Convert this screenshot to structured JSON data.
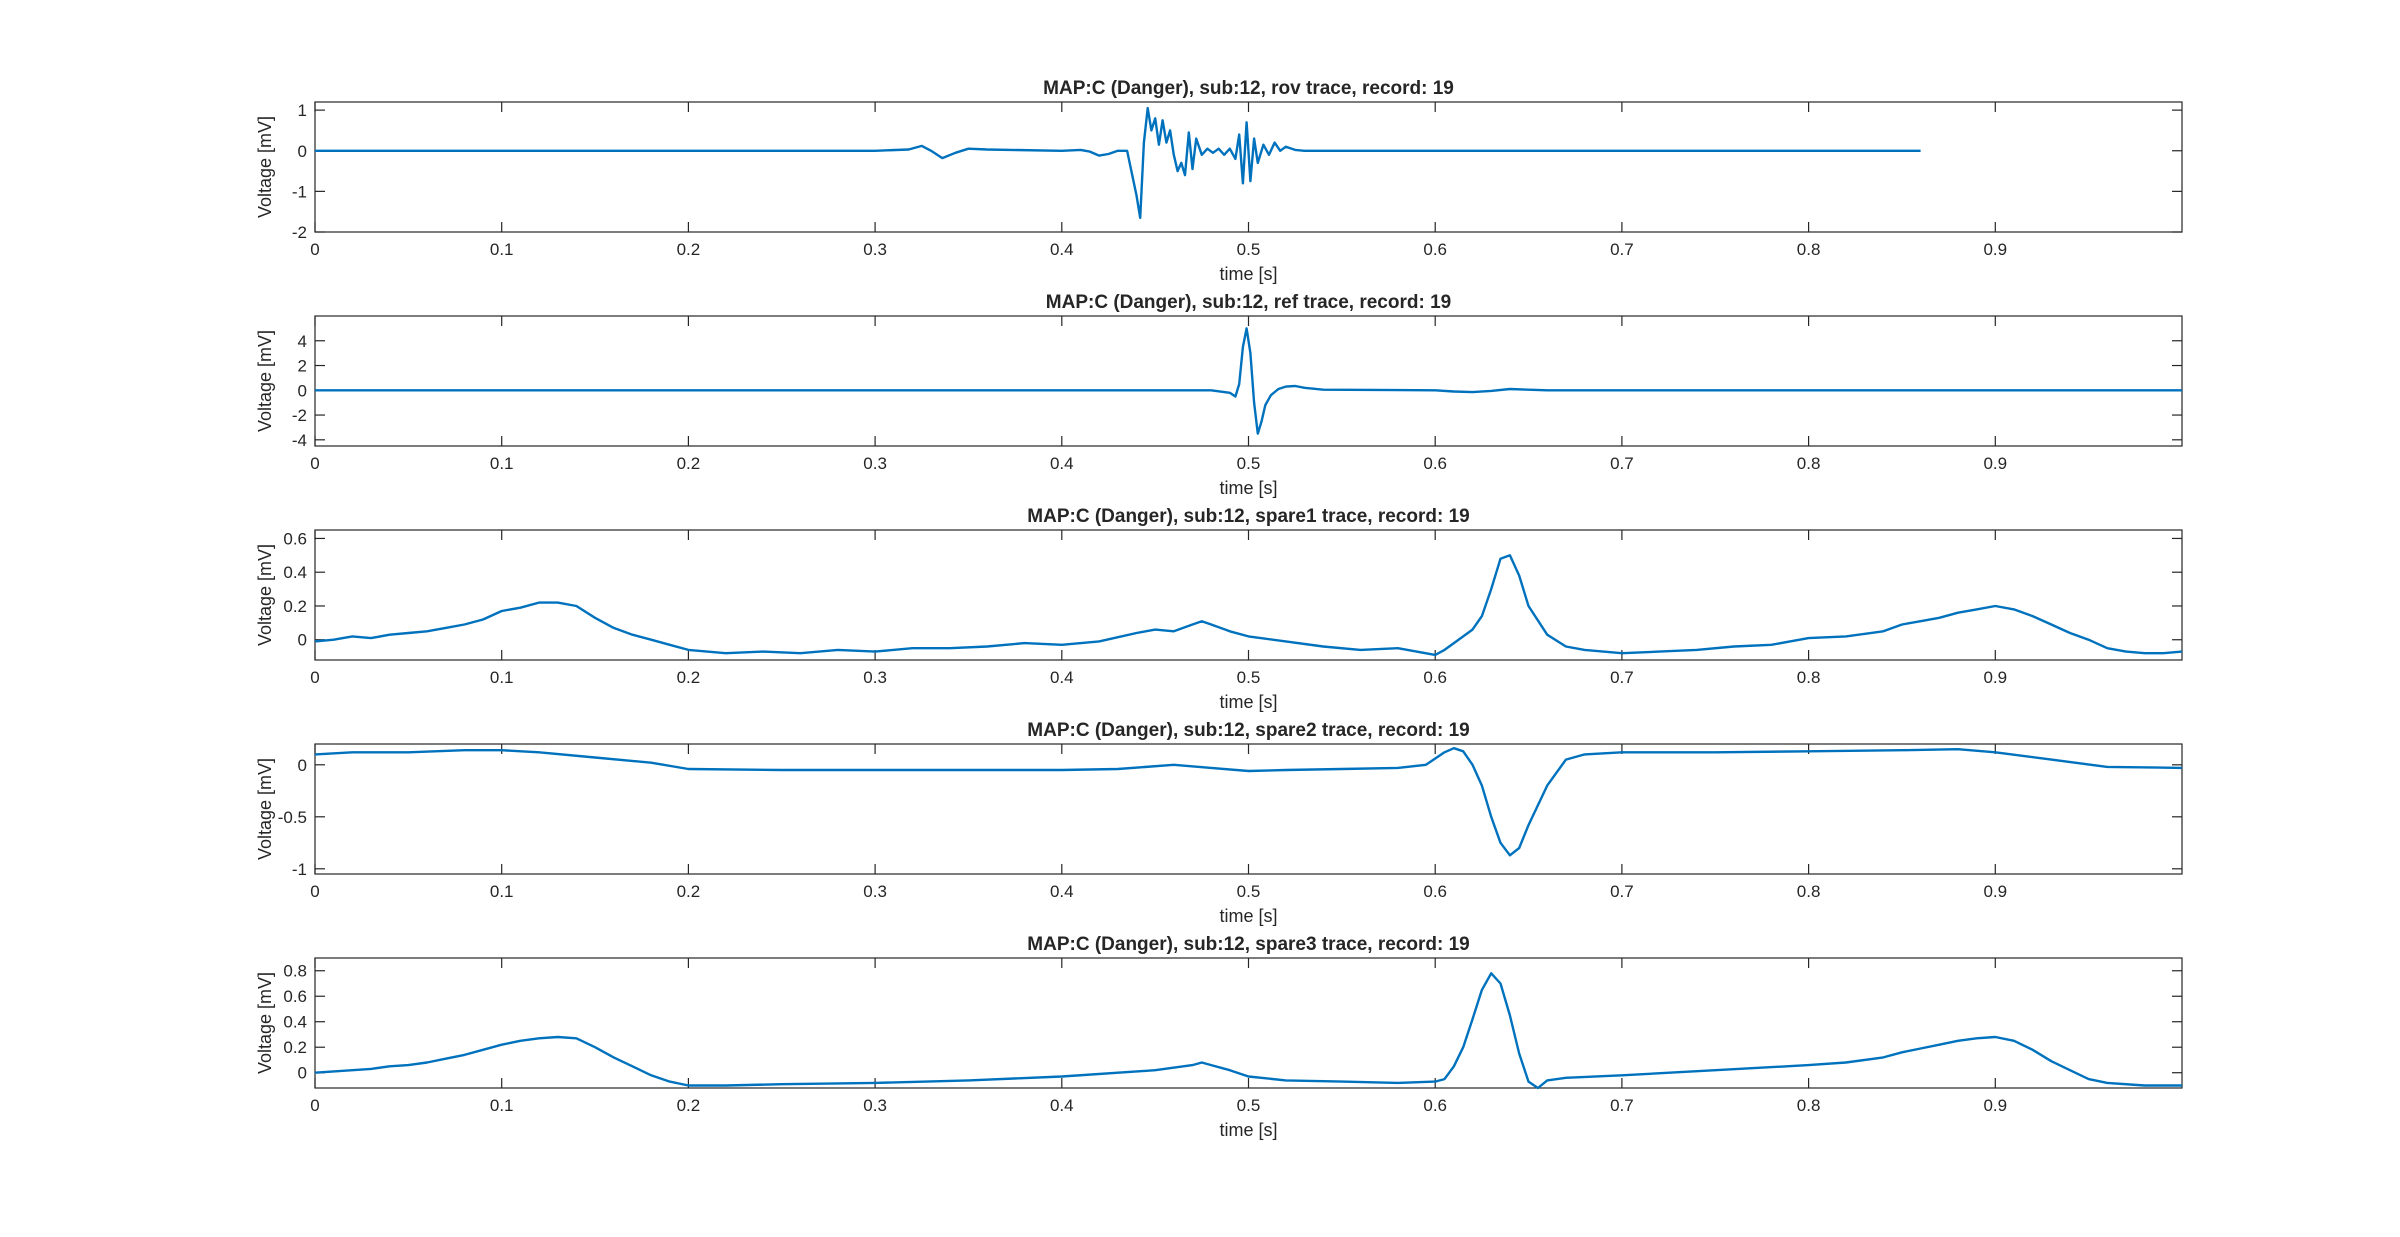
{
  "chart_data": [
    {
      "type": "line",
      "title": "MAP:C (Danger), sub:12, rov trace, record: 19",
      "xlabel": "time [s]",
      "ylabel": "Voltage [mV]",
      "xlim": [
        0,
        1
      ],
      "ylim": [
        -2,
        1.2
      ],
      "xticks": [
        0,
        0.1,
        0.2,
        0.3,
        0.4,
        0.5,
        0.6,
        0.7,
        0.8,
        0.9
      ],
      "xtick_labels": [
        "0",
        "0.1",
        "0.2",
        "0.3",
        "0.4",
        "0.5",
        "0.6",
        "0.7",
        "0.8",
        "0.9"
      ],
      "yticks": [
        -2,
        -1,
        0,
        1
      ],
      "ytick_labels": [
        "-2",
        "-1",
        "0",
        "1"
      ],
      "color": "#0072BD",
      "series": [
        {
          "name": "rov",
          "x": [
            0,
            0.1,
            0.2,
            0.3,
            0.318,
            0.325,
            0.33,
            0.336,
            0.343,
            0.35,
            0.36,
            0.4,
            0.41,
            0.415,
            0.42,
            0.425,
            0.43,
            0.435,
            0.44,
            0.442,
            0.444,
            0.446,
            0.448,
            0.45,
            0.452,
            0.454,
            0.456,
            0.458,
            0.46,
            0.462,
            0.464,
            0.466,
            0.468,
            0.47,
            0.472,
            0.475,
            0.478,
            0.481,
            0.484,
            0.487,
            0.49,
            0.493,
            0.495,
            0.497,
            0.499,
            0.501,
            0.503,
            0.505,
            0.508,
            0.511,
            0.514,
            0.517,
            0.52,
            0.525,
            0.53,
            0.6,
            0.7,
            0.8,
            0.86
          ],
          "y": [
            0,
            0,
            0,
            0,
            0.03,
            0.12,
            0.0,
            -0.18,
            -0.05,
            0.05,
            0.03,
            0.0,
            0.02,
            -0.02,
            -0.12,
            -0.08,
            0.0,
            0.0,
            -1.1,
            -1.65,
            0.2,
            1.05,
            0.5,
            0.8,
            0.15,
            0.75,
            0.2,
            0.5,
            -0.1,
            -0.5,
            -0.3,
            -0.6,
            0.45,
            -0.45,
            0.3,
            -0.1,
            0.05,
            -0.05,
            0.05,
            -0.1,
            0.05,
            -0.2,
            0.4,
            -0.8,
            0.7,
            -0.75,
            0.3,
            -0.3,
            0.15,
            -0.1,
            0.2,
            0.0,
            0.1,
            0.02,
            0.0,
            0.0,
            0.0,
            0.0,
            0.0
          ]
        }
      ]
    },
    {
      "type": "line",
      "title": "MAP:C (Danger), sub:12, ref trace, record: 19",
      "xlabel": "time [s]",
      "ylabel": "Voltage [mV]",
      "xlim": [
        0,
        1
      ],
      "ylim": [
        -4.5,
        6
      ],
      "xticks": [
        0,
        0.1,
        0.2,
        0.3,
        0.4,
        0.5,
        0.6,
        0.7,
        0.8,
        0.9
      ],
      "xtick_labels": [
        "0",
        "0.1",
        "0.2",
        "0.3",
        "0.4",
        "0.5",
        "0.6",
        "0.7",
        "0.8",
        "0.9"
      ],
      "yticks": [
        -4,
        -2,
        0,
        2,
        4
      ],
      "ytick_labels": [
        "-4",
        "-2",
        "0",
        "2",
        "4"
      ],
      "color": "#0072BD",
      "series": [
        {
          "name": "ref",
          "x": [
            0,
            0.1,
            0.2,
            0.3,
            0.4,
            0.48,
            0.49,
            0.493,
            0.495,
            0.497,
            0.499,
            0.501,
            0.503,
            0.505,
            0.507,
            0.509,
            0.512,
            0.516,
            0.52,
            0.525,
            0.53,
            0.54,
            0.6,
            0.61,
            0.62,
            0.63,
            0.64,
            0.65,
            0.66,
            0.7,
            0.8,
            0.9,
            1.0
          ],
          "y": [
            0,
            0,
            0,
            0,
            0,
            0,
            -0.2,
            -0.5,
            0.5,
            3.5,
            5.0,
            3.0,
            -1.0,
            -3.5,
            -2.5,
            -1.2,
            -0.4,
            0.1,
            0.3,
            0.35,
            0.2,
            0.05,
            0.0,
            -0.1,
            -0.15,
            -0.05,
            0.1,
            0.05,
            0.0,
            0.0,
            0.0,
            0.0,
            0.0
          ]
        }
      ]
    },
    {
      "type": "line",
      "title": "MAP:C (Danger), sub:12, spare1 trace, record: 19",
      "xlabel": "time [s]",
      "ylabel": "Voltage [mV]",
      "xlim": [
        0,
        1
      ],
      "ylim": [
        -0.12,
        0.65
      ],
      "xticks": [
        0,
        0.1,
        0.2,
        0.3,
        0.4,
        0.5,
        0.6,
        0.7,
        0.8,
        0.9
      ],
      "xtick_labels": [
        "0",
        "0.1",
        "0.2",
        "0.3",
        "0.4",
        "0.5",
        "0.6",
        "0.7",
        "0.8",
        "0.9"
      ],
      "yticks": [
        0,
        0.2,
        0.4,
        0.6
      ],
      "ytick_labels": [
        "0",
        "0.2",
        "0.4",
        "0.6"
      ],
      "color": "#0072BD",
      "series": [
        {
          "name": "spare1",
          "x": [
            0,
            0.01,
            0.02,
            0.03,
            0.04,
            0.05,
            0.06,
            0.07,
            0.08,
            0.09,
            0.1,
            0.11,
            0.12,
            0.13,
            0.14,
            0.15,
            0.16,
            0.17,
            0.18,
            0.19,
            0.2,
            0.22,
            0.24,
            0.26,
            0.28,
            0.3,
            0.32,
            0.34,
            0.36,
            0.38,
            0.4,
            0.42,
            0.44,
            0.45,
            0.46,
            0.47,
            0.475,
            0.48,
            0.49,
            0.5,
            0.52,
            0.54,
            0.56,
            0.58,
            0.6,
            0.605,
            0.61,
            0.62,
            0.625,
            0.63,
            0.635,
            0.64,
            0.645,
            0.65,
            0.66,
            0.67,
            0.68,
            0.7,
            0.72,
            0.74,
            0.76,
            0.78,
            0.8,
            0.82,
            0.84,
            0.85,
            0.86,
            0.87,
            0.88,
            0.89,
            0.9,
            0.91,
            0.92,
            0.93,
            0.94,
            0.95,
            0.96,
            0.97,
            0.98,
            0.99,
            1.0
          ],
          "y": [
            -0.01,
            0.0,
            0.02,
            0.01,
            0.03,
            0.04,
            0.05,
            0.07,
            0.09,
            0.12,
            0.17,
            0.19,
            0.22,
            0.22,
            0.2,
            0.13,
            0.07,
            0.03,
            0.0,
            -0.03,
            -0.06,
            -0.08,
            -0.07,
            -0.08,
            -0.06,
            -0.07,
            -0.05,
            -0.05,
            -0.04,
            -0.02,
            -0.03,
            -0.01,
            0.04,
            0.06,
            0.05,
            0.09,
            0.11,
            0.09,
            0.05,
            0.02,
            -0.01,
            -0.04,
            -0.06,
            -0.05,
            -0.09,
            -0.06,
            -0.02,
            0.06,
            0.14,
            0.3,
            0.48,
            0.5,
            0.38,
            0.2,
            0.03,
            -0.04,
            -0.06,
            -0.08,
            -0.07,
            -0.06,
            -0.04,
            -0.03,
            0.01,
            0.02,
            0.05,
            0.09,
            0.11,
            0.13,
            0.16,
            0.18,
            0.2,
            0.18,
            0.14,
            0.09,
            0.04,
            0.0,
            -0.05,
            -0.07,
            -0.08,
            -0.08,
            -0.07
          ]
        }
      ]
    },
    {
      "type": "line",
      "title": "MAP:C (Danger), sub:12, spare2 trace, record: 19",
      "xlabel": "time [s]",
      "ylabel": "Voltage [mV]",
      "xlim": [
        0,
        1
      ],
      "ylim": [
        -1.05,
        0.2
      ],
      "xticks": [
        0,
        0.1,
        0.2,
        0.3,
        0.4,
        0.5,
        0.6,
        0.7,
        0.8,
        0.9
      ],
      "xtick_labels": [
        "0",
        "0.1",
        "0.2",
        "0.3",
        "0.4",
        "0.5",
        "0.6",
        "0.7",
        "0.8",
        "0.9"
      ],
      "yticks": [
        -1,
        -0.5,
        0
      ],
      "ytick_labels": [
        "-1",
        "-0.5",
        "0"
      ],
      "color": "#0072BD",
      "series": [
        {
          "name": "spare2",
          "x": [
            0,
            0.02,
            0.05,
            0.08,
            0.1,
            0.12,
            0.15,
            0.18,
            0.2,
            0.25,
            0.3,
            0.35,
            0.4,
            0.43,
            0.46,
            0.48,
            0.5,
            0.52,
            0.55,
            0.58,
            0.595,
            0.605,
            0.61,
            0.615,
            0.62,
            0.625,
            0.63,
            0.635,
            0.64,
            0.645,
            0.65,
            0.66,
            0.67,
            0.68,
            0.7,
            0.75,
            0.8,
            0.85,
            0.88,
            0.9,
            0.93,
            0.96,
            1.0
          ],
          "y": [
            0.1,
            0.12,
            0.12,
            0.14,
            0.14,
            0.12,
            0.07,
            0.02,
            -0.04,
            -0.05,
            -0.05,
            -0.05,
            -0.05,
            -0.04,
            0.0,
            -0.03,
            -0.06,
            -0.05,
            -0.04,
            -0.03,
            0.0,
            0.12,
            0.16,
            0.13,
            0.0,
            -0.2,
            -0.5,
            -0.75,
            -0.87,
            -0.8,
            -0.58,
            -0.2,
            0.05,
            0.1,
            0.12,
            0.12,
            0.13,
            0.14,
            0.15,
            0.12,
            0.05,
            -0.02,
            -0.03
          ]
        }
      ]
    },
    {
      "type": "line",
      "title": "MAP:C (Danger), sub:12, spare3 trace, record: 19",
      "xlabel": "time [s]",
      "ylabel": "Voltage [mV]",
      "xlim": [
        0,
        1
      ],
      "ylim": [
        -0.12,
        0.9
      ],
      "xticks": [
        0,
        0.1,
        0.2,
        0.3,
        0.4,
        0.5,
        0.6,
        0.7,
        0.8,
        0.9
      ],
      "xtick_labels": [
        "0",
        "0.1",
        "0.2",
        "0.3",
        "0.4",
        "0.5",
        "0.6",
        "0.7",
        "0.8",
        "0.9"
      ],
      "yticks": [
        0,
        0.2,
        0.4,
        0.6,
        0.8
      ],
      "ytick_labels": [
        "0",
        "0.2",
        "0.4",
        "0.6",
        "0.8"
      ],
      "color": "#0072BD",
      "series": [
        {
          "name": "spare3",
          "x": [
            0,
            0.01,
            0.02,
            0.03,
            0.04,
            0.05,
            0.06,
            0.07,
            0.08,
            0.09,
            0.1,
            0.11,
            0.12,
            0.13,
            0.14,
            0.15,
            0.16,
            0.17,
            0.18,
            0.19,
            0.2,
            0.22,
            0.25,
            0.3,
            0.35,
            0.4,
            0.45,
            0.47,
            0.475,
            0.48,
            0.49,
            0.5,
            0.52,
            0.55,
            0.58,
            0.6,
            0.605,
            0.61,
            0.615,
            0.62,
            0.625,
            0.63,
            0.635,
            0.64,
            0.645,
            0.65,
            0.655,
            0.66,
            0.67,
            0.7,
            0.75,
            0.8,
            0.82,
            0.84,
            0.85,
            0.86,
            0.87,
            0.88,
            0.89,
            0.9,
            0.91,
            0.92,
            0.93,
            0.94,
            0.95,
            0.96,
            0.98,
            1.0
          ],
          "y": [
            0.0,
            0.01,
            0.02,
            0.03,
            0.05,
            0.06,
            0.08,
            0.11,
            0.14,
            0.18,
            0.22,
            0.25,
            0.27,
            0.28,
            0.27,
            0.2,
            0.12,
            0.05,
            -0.02,
            -0.07,
            -0.1,
            -0.1,
            -0.09,
            -0.08,
            -0.06,
            -0.03,
            0.02,
            0.06,
            0.08,
            0.06,
            0.02,
            -0.03,
            -0.06,
            -0.07,
            -0.08,
            -0.07,
            -0.05,
            0.05,
            0.2,
            0.42,
            0.65,
            0.78,
            0.7,
            0.45,
            0.15,
            -0.07,
            -0.12,
            -0.06,
            -0.04,
            -0.02,
            0.02,
            0.06,
            0.08,
            0.12,
            0.16,
            0.19,
            0.22,
            0.25,
            0.27,
            0.28,
            0.25,
            0.18,
            0.09,
            0.02,
            -0.05,
            -0.08,
            -0.1,
            -0.1
          ]
        }
      ]
    }
  ]
}
